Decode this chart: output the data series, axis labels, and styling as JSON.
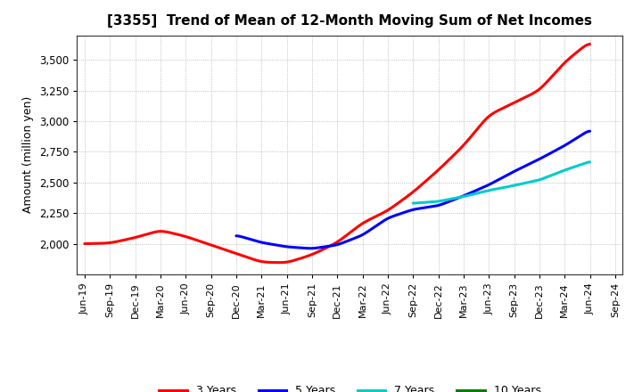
{
  "title": "[3355]  Trend of Mean of 12-Month Moving Sum of Net Incomes",
  "ylabel": "Amount (million yen)",
  "background_color": "#ffffff",
  "grid_color": "#999999",
  "x_labels": [
    "Jun-19",
    "Sep-19",
    "Dec-19",
    "Mar-20",
    "Jun-20",
    "Sep-20",
    "Dec-20",
    "Mar-21",
    "Jun-21",
    "Sep-21",
    "Dec-21",
    "Mar-22",
    "Jun-22",
    "Sep-22",
    "Dec-22",
    "Mar-23",
    "Jun-23",
    "Sep-23",
    "Dec-23",
    "Mar-24",
    "Jun-24",
    "Sep-24"
  ],
  "series": {
    "3 Years": {
      "color": "#ff0000",
      "data_x": [
        0,
        1,
        2,
        3,
        4,
        5,
        6,
        7,
        8,
        9,
        10,
        11,
        12,
        13,
        14,
        15,
        16,
        17,
        18,
        19,
        20
      ],
      "data_y": [
        2000,
        2005,
        2050,
        2110,
        2060,
        1990,
        1920,
        1850,
        1845,
        1910,
        2010,
        2170,
        2270,
        2420,
        2600,
        2800,
        3050,
        3150,
        3250,
        3480,
        3650
      ]
    },
    "5 Years": {
      "color": "#0000ff",
      "data_x": [
        6,
        7,
        8,
        9,
        10,
        11,
        12,
        13,
        14,
        15,
        16,
        17,
        18,
        19,
        20
      ],
      "data_y": [
        2070,
        2010,
        1975,
        1960,
        1990,
        2070,
        2210,
        2280,
        2310,
        2390,
        2480,
        2590,
        2690,
        2800,
        2930
      ]
    },
    "7 Years": {
      "color": "#00cccc",
      "data_x": [
        13,
        14,
        15,
        16,
        17,
        18,
        19,
        20
      ],
      "data_y": [
        2330,
        2345,
        2385,
        2435,
        2475,
        2520,
        2600,
        2670
      ]
    },
    "10 Years": {
      "color": "#008000",
      "data_x": [],
      "data_y": []
    }
  },
  "ylim": [
    1750,
    3700
  ],
  "yticks": [
    2000,
    2250,
    2500,
    2750,
    3000,
    3250,
    3500
  ],
  "legend_colors": [
    "#ff0000",
    "#0000ff",
    "#00cccc",
    "#008000"
  ],
  "legend_labels": [
    "3 Years",
    "5 Years",
    "7 Years",
    "10 Years"
  ]
}
